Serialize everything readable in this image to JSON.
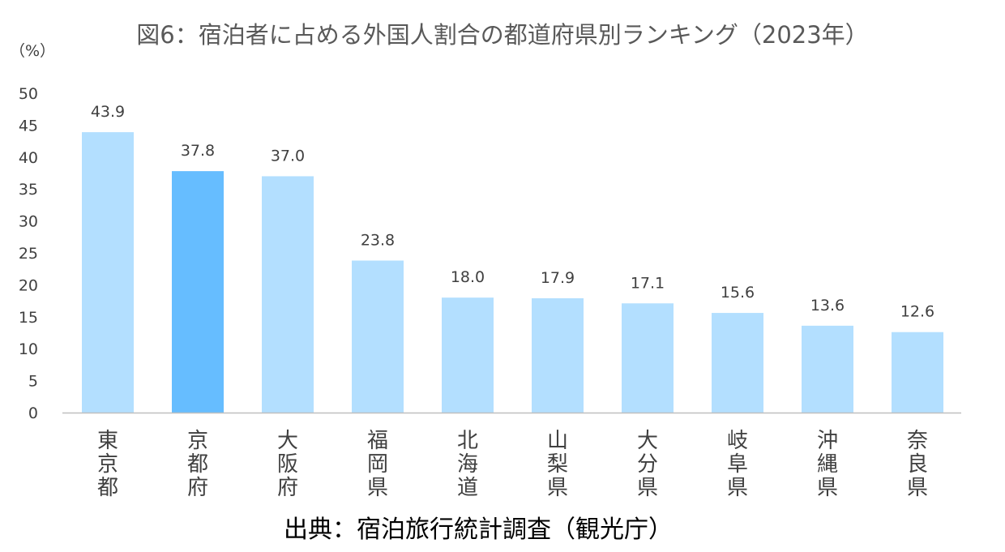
{
  "colors": {
    "bar": "#b3dfff",
    "bar_highlight": "#66bdff",
    "axis_line": "#bfbfbf",
    "tick_text": "#404040",
    "label_text": "#404040"
  },
  "chart_data": {
    "type": "bar",
    "title": "図6：宿泊者に占める外国人割合の都道府県別ランキング（2023年）",
    "ylabel": "（%）",
    "ylim": [
      0,
      50
    ],
    "yticks": [
      "0",
      "5",
      "10",
      "15",
      "20",
      "25",
      "30",
      "35",
      "40",
      "45",
      "50"
    ],
    "ytick_values": [
      0,
      5,
      10,
      15,
      20,
      25,
      30,
      35,
      40,
      45,
      50
    ],
    "grid": false,
    "categories": [
      "東京都",
      "京都府",
      "大阪府",
      "福岡県",
      "北海道",
      "山梨県",
      "大分県",
      "岐阜県",
      "沖縄県",
      "奈良県"
    ],
    "values": [
      43.9,
      37.8,
      37.0,
      23.8,
      18.0,
      17.9,
      17.1,
      15.6,
      13.6,
      12.6
    ],
    "value_labels": [
      "43.9",
      "37.8",
      "37.0",
      "23.8",
      "18.0",
      "17.9",
      "17.1",
      "15.6",
      "13.6",
      "12.6"
    ],
    "highlight": "京都府"
  },
  "source": "出典：宿泊旅行統計調査（観光庁）"
}
